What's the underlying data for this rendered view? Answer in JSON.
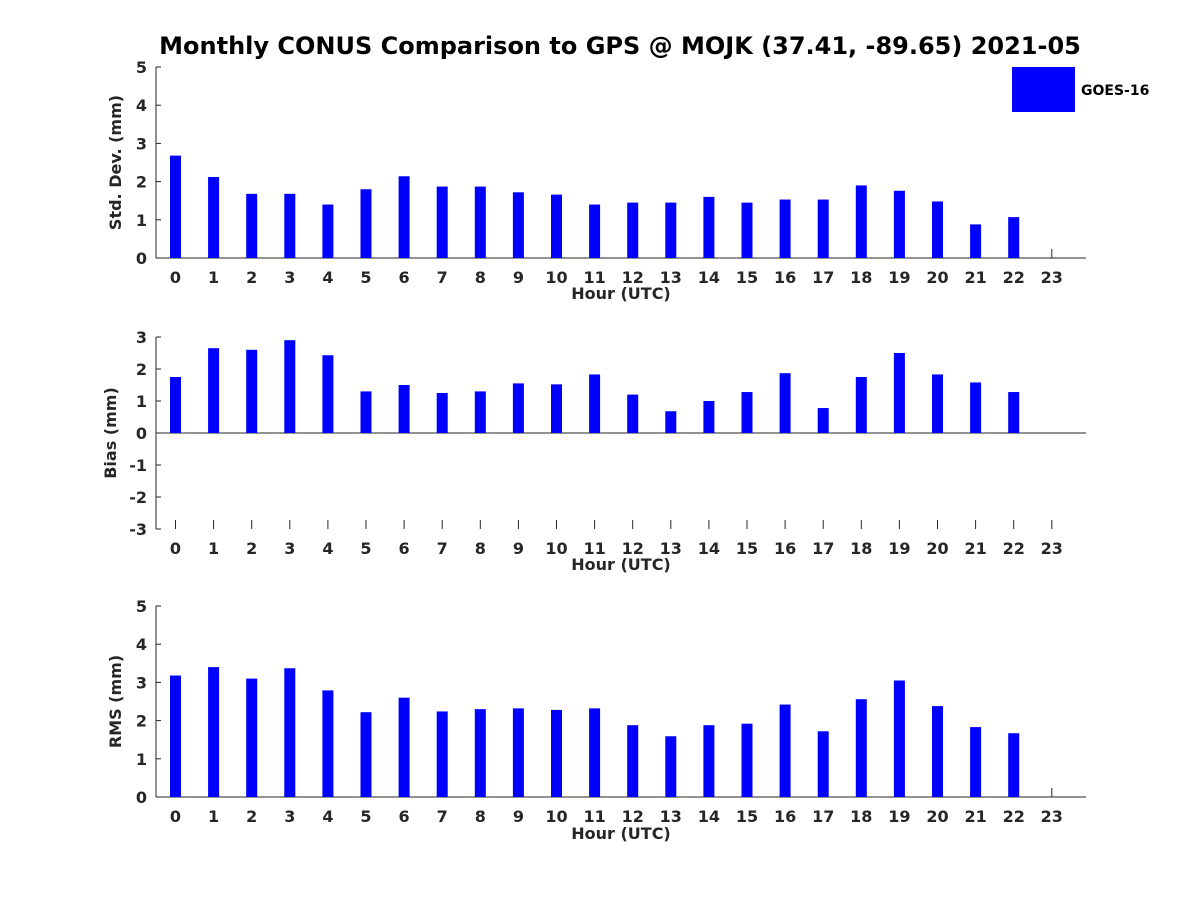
{
  "title": "Monthly CONUS Comparison to GPS @ MOJK (37.41, -89.65) 2021-05",
  "legend": {
    "label": "GOES-16",
    "color": "#0000ff"
  },
  "chart_data": [
    {
      "type": "bar",
      "series_name": "GOES-16",
      "xlabel": "Hour (UTC)",
      "ylabel": "Std. Dev. (mm)",
      "ylim": [
        0,
        5
      ],
      "yticks": [
        "0",
        "1",
        "2",
        "3",
        "4",
        "5"
      ],
      "categories": [
        "0",
        "1",
        "2",
        "3",
        "4",
        "5",
        "6",
        "7",
        "8",
        "9",
        "10",
        "11",
        "12",
        "13",
        "14",
        "15",
        "16",
        "17",
        "18",
        "19",
        "20",
        "21",
        "22",
        "23"
      ],
      "values": [
        2.68,
        2.12,
        1.68,
        1.68,
        1.4,
        1.8,
        2.14,
        1.87,
        1.87,
        1.72,
        1.66,
        1.4,
        1.45,
        1.45,
        1.6,
        1.45,
        1.53,
        1.53,
        1.9,
        1.76,
        1.48,
        0.88,
        1.07,
        null
      ],
      "bar_color": "#0000ff"
    },
    {
      "type": "bar",
      "series_name": "GOES-16",
      "xlabel": "Hour (UTC)",
      "ylabel": "Bias (mm)",
      "ylim": [
        -3,
        3
      ],
      "yticks": [
        "-3",
        "-2",
        "-1",
        "0",
        "1",
        "2",
        "3"
      ],
      "categories": [
        "0",
        "1",
        "2",
        "3",
        "4",
        "5",
        "6",
        "7",
        "8",
        "9",
        "10",
        "11",
        "12",
        "13",
        "14",
        "15",
        "16",
        "17",
        "18",
        "19",
        "20",
        "21",
        "22",
        "23"
      ],
      "values": [
        1.75,
        2.65,
        2.6,
        2.9,
        2.43,
        1.3,
        1.5,
        1.25,
        1.3,
        1.55,
        1.52,
        1.83,
        1.2,
        0.68,
        1.0,
        1.28,
        1.87,
        0.78,
        1.75,
        2.5,
        1.83,
        1.58,
        1.28,
        null
      ],
      "bar_color": "#0000ff"
    },
    {
      "type": "bar",
      "series_name": "GOES-16",
      "xlabel": "Hour (UTC)",
      "ylabel": "RMS (mm)",
      "ylim": [
        0,
        5
      ],
      "yticks": [
        "0",
        "1",
        "2",
        "3",
        "4",
        "5"
      ],
      "categories": [
        "0",
        "1",
        "2",
        "3",
        "4",
        "5",
        "6",
        "7",
        "8",
        "9",
        "10",
        "11",
        "12",
        "13",
        "14",
        "15",
        "16",
        "17",
        "18",
        "19",
        "20",
        "21",
        "22",
        "23"
      ],
      "values": [
        3.18,
        3.4,
        3.1,
        3.37,
        2.79,
        2.22,
        2.6,
        2.24,
        2.3,
        2.32,
        2.28,
        2.32,
        1.88,
        1.59,
        1.88,
        1.92,
        2.42,
        1.72,
        2.56,
        3.05,
        2.38,
        1.83,
        1.67,
        null
      ],
      "bar_color": "#0000ff"
    }
  ]
}
